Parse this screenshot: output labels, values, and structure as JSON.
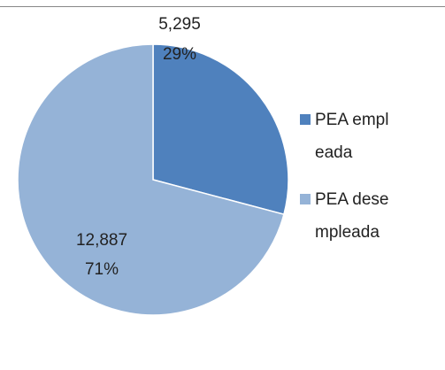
{
  "chart_data": {
    "type": "pie",
    "categories": [
      "PEA empleada",
      "PEA desempleada"
    ],
    "values": [
      5295,
      12887
    ],
    "value_labels": [
      "5,295",
      "12,887"
    ],
    "percentages": [
      29,
      71
    ],
    "percent_labels": [
      "29%",
      "71%"
    ],
    "colors": [
      "#4f81bd",
      "#95b3d7"
    ],
    "legend": "right"
  }
}
